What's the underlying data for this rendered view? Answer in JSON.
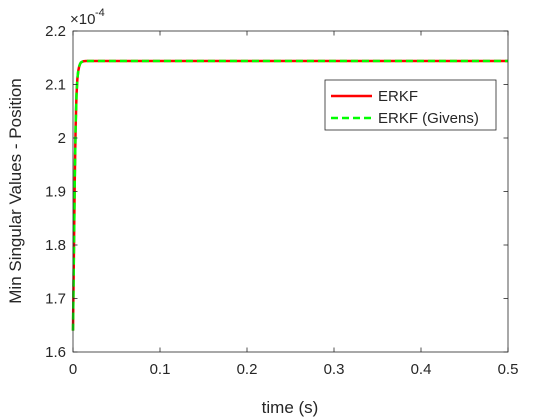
{
  "chart_data": {
    "type": "line",
    "title": "",
    "xlabel": "time (s)",
    "ylabel": "Min Singular Values - Position",
    "xlim": [
      0,
      0.5
    ],
    "ylim": [
      1.6,
      2.2
    ],
    "y_exponent_label": "×10",
    "y_exponent_power": "-4",
    "x_ticks": [
      0,
      0.1,
      0.2,
      0.3,
      0.4,
      0.5
    ],
    "x_tick_labels": [
      "0",
      "0.1",
      "0.2",
      "0.3",
      "0.4",
      "0.5"
    ],
    "y_ticks": [
      1.6,
      1.7,
      1.8,
      1.9,
      2.0,
      2.1,
      2.2
    ],
    "y_tick_labels": [
      "1.6",
      "1.7",
      "1.8",
      "1.9",
      "2",
      "2.1",
      "2.2"
    ],
    "grid": false,
    "legend_position": "top-right",
    "series": [
      {
        "name": "ERKF",
        "color": "#ff0000",
        "style": "solid",
        "x": [
          0,
          0.001,
          0.002,
          0.003,
          0.004,
          0.005,
          0.006,
          0.007,
          0.008,
          0.009,
          0.01,
          0.012,
          0.015,
          0.02,
          0.03,
          0.05,
          0.1,
          0.2,
          0.3,
          0.4,
          0.5
        ],
        "y": [
          1.64,
          1.78,
          1.92,
          2.02,
          2.08,
          2.11,
          2.125,
          2.133,
          2.138,
          2.141,
          2.142,
          2.1435,
          2.144,
          2.144,
          2.144,
          2.144,
          2.144,
          2.144,
          2.144,
          2.144,
          2.144
        ]
      },
      {
        "name": "ERKF (Givens)",
        "color": "#00ff00",
        "style": "dashed",
        "x": [
          0,
          0.001,
          0.002,
          0.003,
          0.004,
          0.005,
          0.006,
          0.007,
          0.008,
          0.009,
          0.01,
          0.012,
          0.015,
          0.02,
          0.03,
          0.05,
          0.1,
          0.2,
          0.3,
          0.4,
          0.5
        ],
        "y": [
          1.64,
          1.78,
          1.92,
          2.02,
          2.08,
          2.11,
          2.125,
          2.133,
          2.138,
          2.141,
          2.142,
          2.1435,
          2.144,
          2.144,
          2.144,
          2.144,
          2.144,
          2.144,
          2.144,
          2.144,
          2.144
        ]
      }
    ]
  }
}
